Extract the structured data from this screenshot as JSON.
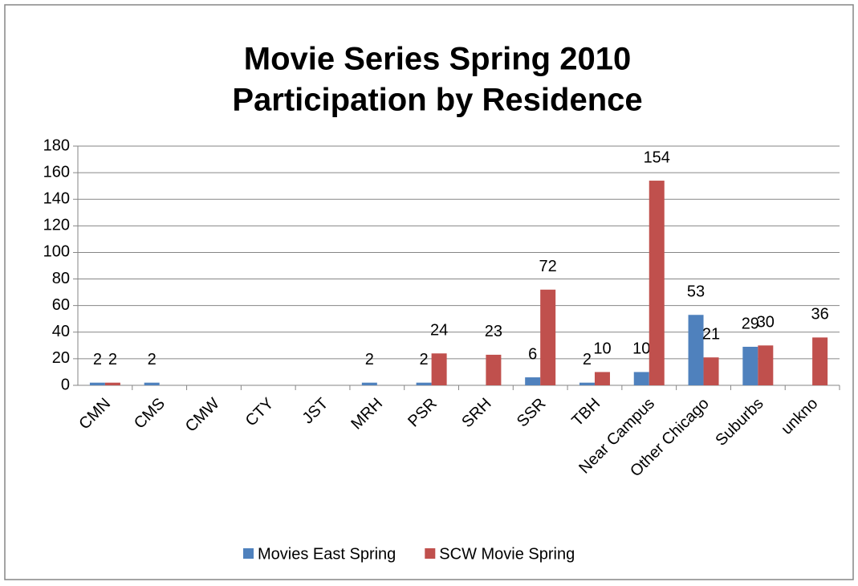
{
  "chart_data": {
    "type": "bar",
    "title": [
      "Movie Series Spring 2010",
      "Participation by Residence"
    ],
    "categories": [
      "CMN",
      "CMS",
      "CMW",
      "CTY",
      "JST",
      "MRH",
      "PSR",
      "SRH",
      "SSR",
      "TBH",
      "Near Campus",
      "Other Chicago",
      "Suburbs",
      "unkno"
    ],
    "series": [
      {
        "name": "Movies East Spring",
        "color": "#4f81bd",
        "values": [
          2,
          2,
          null,
          null,
          null,
          2,
          2,
          null,
          6,
          2,
          10,
          53,
          29,
          null
        ]
      },
      {
        "name": "SCW Movie Spring",
        "color": "#c0504d",
        "values": [
          2,
          null,
          null,
          null,
          null,
          null,
          24,
          23,
          72,
          10,
          154,
          21,
          30,
          36
        ]
      }
    ],
    "ylim": [
      0,
      180
    ],
    "yticks": [
      0,
      20,
      40,
      60,
      80,
      100,
      120,
      140,
      160,
      180
    ],
    "grid": true,
    "legend": "bottom"
  }
}
